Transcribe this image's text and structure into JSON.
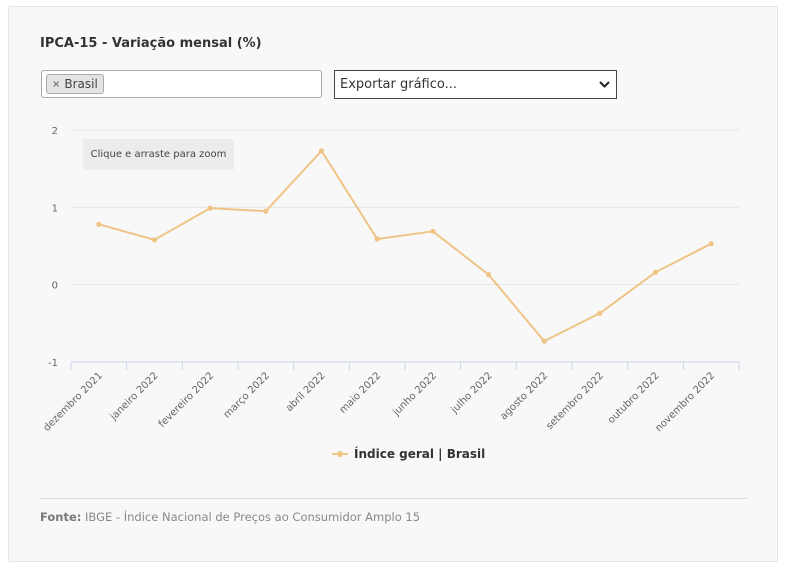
{
  "title": "IPCA-15 - Variação mensal (%)",
  "filter": {
    "chip_label": "Brasil",
    "remove_symbol": "×"
  },
  "export": {
    "selected": "Exportar gráfico...",
    "chevron": "⌄"
  },
  "zoom_hint": "Clique e arraste para zoom",
  "legend": {
    "label": "Índice geral | Brasil"
  },
  "footer": {
    "source_label": "Fonte:",
    "source_text": "IBGE - Índice Nacional de Preços ao Consumidor Amplo 15"
  },
  "colors": {
    "series": "#efc485",
    "grid": "#e6e6e6",
    "axis": "#ccd6eb"
  },
  "chart_data": {
    "type": "line",
    "categories": [
      "dezembro 2021",
      "janeiro 2022",
      "fevereiro 2022",
      "março 2022",
      "abril 2022",
      "maio 2022",
      "junho 2022",
      "julho 2022",
      "agosto 2022",
      "setembro 2022",
      "outubro 2022",
      "novembro 2022"
    ],
    "series": [
      {
        "name": "Índice geral | Brasil",
        "values": [
          0.78,
          0.58,
          0.99,
          0.95,
          1.73,
          0.59,
          0.69,
          0.13,
          -0.73,
          -0.37,
          0.16,
          0.53
        ]
      }
    ],
    "y_ticks": [
      "2",
      "1",
      "0",
      "-1"
    ],
    "ylim": [
      -1,
      2
    ],
    "grid": true,
    "legend_position": "bottom"
  }
}
